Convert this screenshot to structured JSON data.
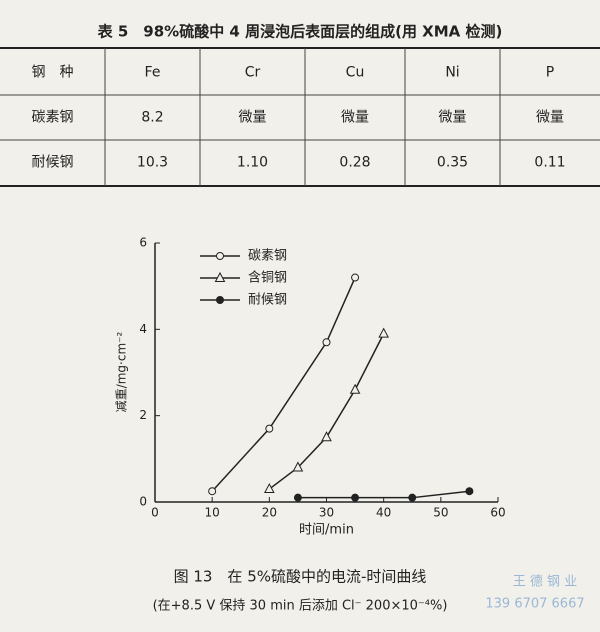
{
  "table": {
    "title": "表 5　98%硫酸中 4 周浸泡后表面层的组成(用 XMA 检测)",
    "header": [
      "钢　种",
      "Fe",
      "Cr",
      "Cu",
      "Ni",
      "P"
    ],
    "rows": [
      [
        "碳素钢",
        "8.2",
        "微量",
        "微量",
        "微量",
        "微量"
      ],
      [
        "耐候钢",
        "10.3",
        "1.10",
        "0.28",
        "0.35",
        "0.11"
      ]
    ]
  },
  "chart_data": {
    "type": "line",
    "title": "图 13　在 5%硫酸中的电流-时间曲线",
    "subtitle": "(在+8.5 V 保持 30 min 后添加 Cl⁻ 200×10⁻⁴%)",
    "x_label": "时间/min",
    "y_label": "减重/mg·cm⁻²",
    "xlim": [
      0,
      60
    ],
    "xticks": [
      0,
      10,
      20,
      30,
      40,
      50,
      60
    ],
    "ylim": [
      0,
      6
    ],
    "yticks": [
      0,
      2,
      4,
      6
    ],
    "series": [
      {
        "name": "碳素钢",
        "color": "#222222",
        "marker": "open-circle",
        "x": [
          10,
          20,
          30,
          35
        ],
        "values": [
          0.25,
          1.7,
          3.7,
          5.2
        ]
      },
      {
        "name": "含铜钢",
        "color": "#222222",
        "marker": "open-triangle",
        "x": [
          20,
          25,
          30,
          35,
          40
        ],
        "values": [
          0.3,
          0.8,
          1.5,
          2.6,
          3.9
        ]
      },
      {
        "name": "耐候钢",
        "color": "#222222",
        "marker": "filled-circle",
        "x": [
          25,
          35,
          45,
          55
        ],
        "values": [
          0.1,
          0.1,
          0.1,
          0.25
        ]
      }
    ]
  },
  "watermark": [
    "王 德 钢 业",
    "139 6707 6667"
  ]
}
